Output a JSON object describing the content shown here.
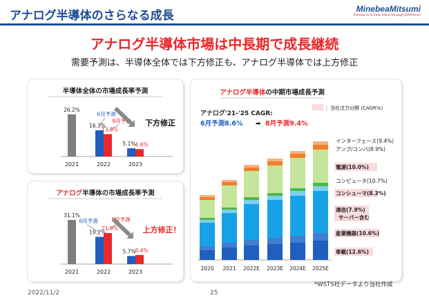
{
  "header": {
    "title": "アナログ半導体のさらなる成長",
    "logo": "MinebeaMitsumi",
    "logo_tagline": "Passion to Create Value through Difference"
  },
  "headline": "アナログ半導体市場は中長期で成長継続",
  "subline": "需要予測は、半導体全体では下方修正も、アナログ半導体では上方修正",
  "footer": {
    "date": "2022/11/2",
    "page": "25",
    "note": "*WSTS社データより当社作成"
  },
  "colors": {
    "gray": "#7f7f7f",
    "blue": "#1f5fbf",
    "red": "#e8282a"
  },
  "chart_data": [
    {
      "type": "bar",
      "title": "半導体全体の市場成長率予測",
      "categories": [
        "2021",
        "2022",
        "2023"
      ],
      "series": [
        {
          "name": "6月予測",
          "values": [
            26.2,
            16.3,
            5.1
          ]
        },
        {
          "name": "8月予測",
          "values": [
            null,
            13.9,
            4.6
          ]
        }
      ],
      "value_labels": [
        [
          "26.2%",
          "16.3%",
          "5.1%"
        ],
        [
          null,
          "13.9%",
          "4.6%"
        ]
      ],
      "annotation": "下方修正",
      "ylim": [
        0,
        30
      ]
    },
    {
      "type": "bar",
      "title": "アナログ半導体の市場成長率予測",
      "title_parts": [
        "アナログ",
        "半導体の市場成長率予測"
      ],
      "categories": [
        "2021",
        "2022",
        "2023"
      ],
      "series": [
        {
          "name": "6月予測",
          "values": [
            31.1,
            19.2,
            5.7
          ]
        },
        {
          "name": "8月予測",
          "values": [
            null,
            21.9,
            6.4
          ]
        }
      ],
      "value_labels": [
        [
          "31.1%",
          "19.2%",
          "5.7%"
        ],
        [
          null,
          "21.9%",
          "6.4%"
        ]
      ],
      "annotation": "上方修正！",
      "ylim": [
        0,
        35
      ]
    },
    {
      "type": "bar",
      "stacked": true,
      "title": "アナログ半導体の中期市場成長予測",
      "title_parts": [
        "アナログ半導体",
        "の中期市場成長予測"
      ],
      "cagr_label": "アナログ'21-'25 CAGR:",
      "cagr_june": "6月予測8.6%",
      "cagr_arrow": "➡",
      "cagr_aug": "8月予測9.4%",
      "legend_note": "：当社注力分野 (CAGR%)",
      "categories": [
        "2020",
        "2021",
        "2022E",
        "2023E",
        "2024E",
        "2025E"
      ],
      "series": [
        {
          "name": "車載(12.6%)",
          "focus": true,
          "color": "#1f5fbf",
          "values": [
            14,
            18,
            21,
            23,
            25,
            28
          ]
        },
        {
          "name": "産業機器(10.6%)",
          "focus": true,
          "color": "#3f7fd0",
          "values": [
            6,
            7,
            8,
            9,
            10,
            11
          ]
        },
        {
          "name": "通信(7.9%)\nサーバー含む",
          "focus": true,
          "color": "#17a2e8",
          "values": [
            34,
            43,
            52,
            55,
            58,
            61
          ]
        },
        {
          "name": "コンシューマ(8.3%)",
          "focus": true,
          "color": "#7fcff0",
          "values": [
            4,
            5,
            6,
            6,
            7,
            7
          ]
        },
        {
          "name": "コンピュータ(10.7%)",
          "focus": false,
          "color": "#4db848",
          "values": [
            3,
            3,
            4,
            4,
            4,
            5
          ]
        },
        {
          "name": "電源(10.0%)",
          "focus": true,
          "color": "#c5e59c",
          "values": [
            26,
            32,
            38,
            40,
            44,
            48
          ]
        },
        {
          "name": "アンプ/コンバ(8.9%)",
          "focus": false,
          "color": "#f07f2a",
          "values": [
            4,
            5,
            5,
            6,
            6,
            7
          ]
        },
        {
          "name": "インターフェース(9.4%)",
          "focus": false,
          "color": "#f5b183",
          "values": [
            3,
            3,
            4,
            4,
            4,
            5
          ]
        }
      ],
      "ylim": [
        0,
        175
      ]
    }
  ]
}
